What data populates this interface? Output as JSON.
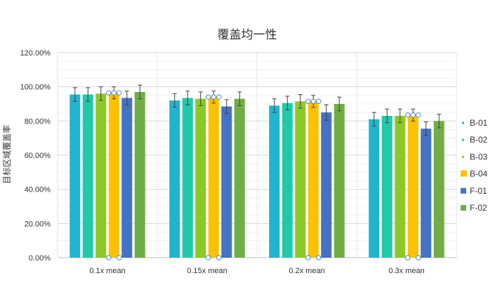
{
  "chart_data": {
    "type": "bar",
    "title": "覆盖均一性",
    "xlabel": "",
    "ylabel": "目标区域覆盖率",
    "categories": [
      "0.1x mean",
      "0.15x mean",
      "0.2x mean",
      "0.3x mean"
    ],
    "yticks": [
      "0.00%",
      "20.00%",
      "40.00%",
      "60.00%",
      "80.00%",
      "100.00%",
      "120.00%"
    ],
    "ylim": [
      0,
      1.2
    ],
    "grid": true,
    "legend_position": "right",
    "error_bars": true,
    "selected_series": "B-04",
    "series": [
      {
        "name": "B-01",
        "color": "#1FB5CF",
        "values": [
          0.955,
          0.92,
          0.89,
          0.81
        ],
        "errors": [
          0.04,
          0.04,
          0.04,
          0.04
        ]
      },
      {
        "name": "B-02",
        "color": "#20C9AA",
        "values": [
          0.955,
          0.935,
          0.905,
          0.83
        ],
        "errors": [
          0.04,
          0.04,
          0.04,
          0.04
        ]
      },
      {
        "name": "B-03",
        "color": "#8CC926",
        "values": [
          0.96,
          0.93,
          0.915,
          0.83
        ],
        "errors": [
          0.04,
          0.04,
          0.04,
          0.04
        ]
      },
      {
        "name": "B-04",
        "color": "#FFC000",
        "values": [
          0.965,
          0.94,
          0.915,
          0.835
        ],
        "errors": [
          0.035,
          0.035,
          0.035,
          0.035
        ]
      },
      {
        "name": "F-01",
        "color": "#4472C4",
        "values": [
          0.935,
          0.885,
          0.85,
          0.755
        ],
        "errors": [
          0.04,
          0.04,
          0.045,
          0.04
        ]
      },
      {
        "name": "F-02",
        "color": "#70AD47",
        "values": [
          0.97,
          0.93,
          0.9,
          0.8
        ],
        "errors": [
          0.04,
          0.04,
          0.04,
          0.04
        ]
      }
    ]
  }
}
